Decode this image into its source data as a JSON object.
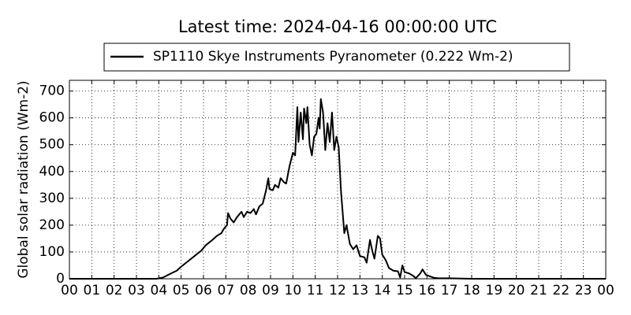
{
  "chart_data": {
    "type": "line",
    "title": "Latest time: 2024-04-16 00:00:00 UTC",
    "y_label": "Global solar radiation (Wm-2)",
    "xlim": [
      0,
      24
    ],
    "ylim": [
      0,
      740
    ],
    "xticks": [
      {
        "value": 0,
        "label": "00"
      },
      {
        "value": 1,
        "label": "01"
      },
      {
        "value": 2,
        "label": "02"
      },
      {
        "value": 3,
        "label": "03"
      },
      {
        "value": 4,
        "label": "04"
      },
      {
        "value": 5,
        "label": "05"
      },
      {
        "value": 6,
        "label": "06"
      },
      {
        "value": 7,
        "label": "07"
      },
      {
        "value": 8,
        "label": "08"
      },
      {
        "value": 9,
        "label": "09"
      },
      {
        "value": 10,
        "label": "10"
      },
      {
        "value": 11,
        "label": "11"
      },
      {
        "value": 12,
        "label": "12"
      },
      {
        "value": 13,
        "label": "13"
      },
      {
        "value": 14,
        "label": "14"
      },
      {
        "value": 15,
        "label": "15"
      },
      {
        "value": 16,
        "label": "16"
      },
      {
        "value": 17,
        "label": "17"
      },
      {
        "value": 18,
        "label": "18"
      },
      {
        "value": 19,
        "label": "19"
      },
      {
        "value": 20,
        "label": "20"
      },
      {
        "value": 21,
        "label": "21"
      },
      {
        "value": 22,
        "label": "22"
      },
      {
        "value": 23,
        "label": "23"
      },
      {
        "value": 24,
        "label": "00"
      }
    ],
    "yticks": [
      0,
      100,
      200,
      300,
      400,
      500,
      600,
      700
    ],
    "grid": true,
    "legend": "top",
    "x": [
      0,
      1,
      2,
      3,
      3.9,
      4.2,
      4.5,
      4.8,
      5.0,
      5.3,
      5.6,
      5.9,
      6.1,
      6.4,
      6.6,
      6.8,
      6.9,
      7.05,
      7.1,
      7.2,
      7.35,
      7.5,
      7.7,
      7.8,
      7.95,
      8.1,
      8.25,
      8.35,
      8.5,
      8.65,
      8.8,
      8.9,
      8.95,
      9.1,
      9.2,
      9.35,
      9.45,
      9.6,
      9.7,
      9.85,
      10.0,
      10.1,
      10.2,
      10.25,
      10.35,
      10.45,
      10.5,
      10.6,
      10.65,
      10.75,
      10.85,
      10.95,
      11.05,
      11.15,
      11.2,
      11.25,
      11.35,
      11.45,
      11.55,
      11.65,
      11.75,
      11.85,
      11.95,
      12.05,
      12.15,
      12.3,
      12.4,
      12.55,
      12.7,
      12.85,
      13.0,
      13.2,
      13.3,
      13.45,
      13.55,
      13.65,
      13.8,
      13.9,
      14.0,
      14.15,
      14.3,
      14.5,
      14.7,
      14.8,
      14.9,
      15.0,
      15.2,
      15.4,
      15.5,
      15.7,
      15.8,
      15.95,
      16.1,
      16.3,
      16.5,
      17,
      18,
      20,
      22,
      24
    ],
    "series": [
      {
        "name": "SP1110 Skye Instruments Pyranometer (0.222 Wm-2)",
        "color": "#000000",
        "values": [
          0,
          0,
          0,
          0,
          0,
          5,
          18,
          30,
          45,
          65,
          85,
          105,
          125,
          145,
          160,
          170,
          185,
          200,
          245,
          225,
          210,
          230,
          250,
          230,
          250,
          245,
          260,
          240,
          270,
          280,
          330,
          375,
          335,
          330,
          350,
          340,
          375,
          360,
          355,
          420,
          470,
          460,
          640,
          510,
          620,
          520,
          635,
          580,
          640,
          500,
          460,
          530,
          540,
          600,
          560,
          670,
          620,
          480,
          580,
          510,
          620,
          480,
          530,
          490,
          330,
          170,
          200,
          130,
          110,
          125,
          85,
          80,
          60,
          145,
          105,
          75,
          160,
          150,
          90,
          70,
          40,
          30,
          28,
          5,
          50,
          25,
          20,
          10,
          2,
          20,
          35,
          15,
          10,
          4,
          2,
          2,
          0,
          0,
          0,
          0
        ]
      }
    ]
  }
}
